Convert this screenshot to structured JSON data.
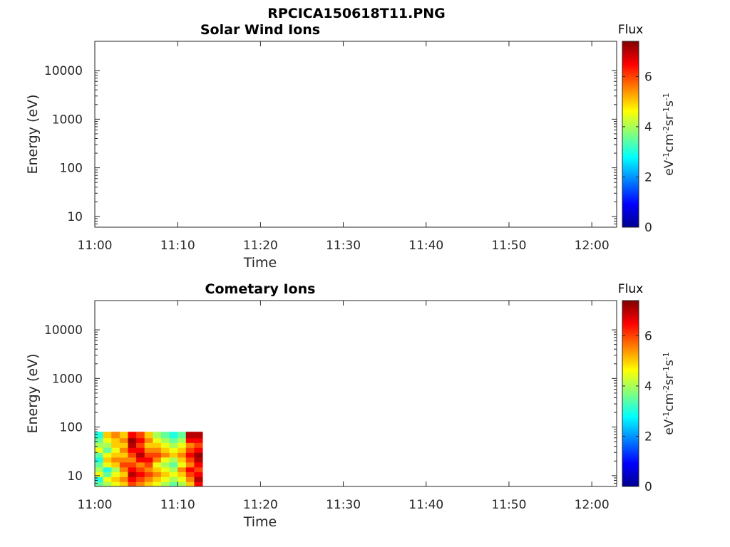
{
  "figure": {
    "title": "RPCICA150618T11.PNG"
  },
  "colormap": {
    "name": "jet",
    "stops": [
      "#00008f",
      "#0000ff",
      "#0080ff",
      "#00ffff",
      "#80ff80",
      "#ffff00",
      "#ff8000",
      "#ff0000",
      "#800000"
    ]
  },
  "chart_data": [
    {
      "type": "heatmap",
      "title": "Solar Wind Ions",
      "xlabel": "Time",
      "ylabel": "Energy (eV)",
      "x_ticks": [
        "11:00",
        "11:10",
        "11:20",
        "11:30",
        "11:40",
        "11:50",
        "12:00"
      ],
      "xlim": [
        "11:00",
        "12:03"
      ],
      "y_scale": "log",
      "y_ticks": [
        10,
        100,
        1000,
        10000
      ],
      "y_tick_labels": [
        "10",
        "100",
        "1000",
        "10000"
      ],
      "ylim": [
        6,
        40000
      ],
      "colorbar": {
        "title": "Flux",
        "label": "eV-1cm-2sr-1s-1",
        "ticks": [
          "0",
          "2",
          "4",
          "6"
        ],
        "range": [
          0,
          7.4
        ]
      },
      "grid": false,
      "data": []
    },
    {
      "type": "heatmap",
      "title": "Cometary Ions",
      "xlabel": "Time",
      "ylabel": "Energy (eV)",
      "x_ticks": [
        "11:00",
        "11:10",
        "11:20",
        "11:30",
        "11:40",
        "11:50",
        "12:00"
      ],
      "xlim": [
        "11:00",
        "12:03"
      ],
      "y_scale": "log",
      "y_ticks": [
        10,
        100,
        1000,
        10000
      ],
      "y_tick_labels": [
        "10",
        "100",
        "1000",
        "10000"
      ],
      "ylim": [
        6,
        40000
      ],
      "colorbar": {
        "title": "Flux",
        "label": "eV-1cm-2sr-1s-1",
        "ticks": [
          "0",
          "2",
          "4",
          "6"
        ],
        "range": [
          0,
          7.4
        ]
      },
      "grid": false,
      "data": {
        "time_start": "11:00",
        "time_end": "11:13",
        "energy_min": 6,
        "energy_max": 80,
        "energy_bins": [
          6,
          7.5,
          9.5,
          12,
          15,
          19,
          24,
          30,
          38,
          48,
          60,
          80
        ],
        "time_bins": [
          "11:00",
          "11:01",
          "11:02",
          "11:03",
          "11:04",
          "11:05",
          "11:06",
          "11:07",
          "11:08",
          "11:09",
          "11:10",
          "11:11",
          "11:12",
          "11:13"
        ],
        "flux": [
          [
            3.5,
            3.0,
            4.5,
            4.0,
            3.5,
            3.0,
            3.5,
            4.5,
            4.0,
            3.5,
            3.0
          ],
          [
            4.0,
            4.5,
            3.5,
            3.0,
            4.5,
            5.0,
            4.5,
            3.5,
            4.0,
            4.5,
            5.0
          ],
          [
            4.5,
            5.0,
            4.5,
            4.0,
            5.0,
            5.5,
            5.0,
            4.5,
            5.0,
            5.0,
            5.5
          ],
          [
            5.0,
            5.5,
            5.0,
            5.5,
            6.0,
            5.5,
            5.0,
            5.5,
            5.0,
            5.5,
            5.0
          ],
          [
            6.0,
            6.5,
            7.0,
            6.5,
            6.0,
            5.5,
            6.0,
            6.5,
            7.0,
            7.2,
            6.5
          ],
          [
            5.5,
            6.0,
            6.5,
            6.0,
            5.5,
            6.5,
            7.0,
            6.5,
            6.0,
            6.5,
            6.0
          ],
          [
            5.0,
            5.5,
            6.0,
            5.5,
            6.0,
            6.5,
            6.0,
            5.5,
            5.0,
            5.5,
            5.0
          ],
          [
            4.5,
            5.0,
            5.5,
            5.0,
            4.5,
            5.5,
            6.0,
            5.5,
            5.0,
            4.5,
            4.0
          ],
          [
            4.0,
            4.5,
            5.0,
            4.5,
            4.0,
            4.5,
            5.5,
            5.0,
            4.5,
            4.0,
            3.5
          ],
          [
            3.5,
            4.0,
            4.5,
            4.0,
            3.5,
            4.0,
            5.0,
            4.5,
            4.0,
            3.5,
            3.0
          ],
          [
            4.0,
            4.5,
            5.0,
            5.5,
            4.5,
            5.0,
            5.5,
            5.0,
            4.5,
            4.0,
            3.5
          ],
          [
            5.0,
            5.5,
            6.0,
            6.5,
            5.5,
            6.0,
            6.5,
            6.0,
            5.5,
            6.5,
            7.0
          ],
          [
            6.5,
            7.0,
            6.5,
            6.0,
            6.5,
            7.0,
            7.2,
            6.5,
            6.0,
            6.5,
            7.0
          ]
        ]
      }
    }
  ]
}
